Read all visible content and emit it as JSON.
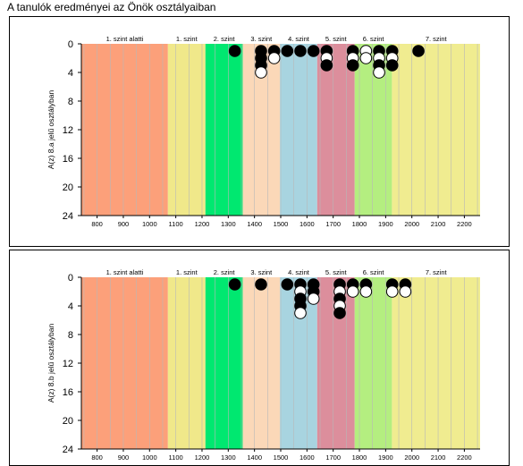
{
  "page_title": "A tanulók eredményei az Önök osztályaiban",
  "chart_data": [
    {
      "type": "scatter",
      "title": "",
      "ylabel": "A(z) 8.a jelű osztályban",
      "xlabel": "",
      "xlim": [
        740,
        2260
      ],
      "ylim": [
        0,
        24
      ],
      "y_inverted": true,
      "x_ticks": [
        800,
        900,
        1000,
        1100,
        1200,
        1300,
        1400,
        1500,
        1600,
        1700,
        1800,
        1900,
        2000,
        2100,
        2200
      ],
      "y_ticks": [
        0,
        4,
        8,
        12,
        16,
        20,
        24
      ],
      "grid": true,
      "bands": [
        {
          "label": "1. szint alatti",
          "from": 740,
          "to": 1070,
          "color": "#fca07a"
        },
        {
          "label": "1. szint",
          "from": 1070,
          "to": 1213,
          "color": "#f0e88a"
        },
        {
          "label": "2. szint",
          "from": 1213,
          "to": 1355,
          "color": "#00e870"
        },
        {
          "label": "3. szint",
          "from": 1355,
          "to": 1497,
          "color": "#fbd8b8"
        },
        {
          "label": "4. szint",
          "from": 1497,
          "to": 1639,
          "color": "#a8d4e0"
        },
        {
          "label": "5. szint",
          "from": 1639,
          "to": 1782,
          "color": "#dc8e9c"
        },
        {
          "label": "6. szint",
          "from": 1782,
          "to": 1924,
          "color": "#b4ee80"
        },
        {
          "label": "7. szint",
          "from": 1924,
          "to": 2260,
          "color": "#f0ec90"
        }
      ],
      "points": [
        {
          "x": 1325,
          "y": 1,
          "fill": "black"
        },
        {
          "x": 1425,
          "y": 1,
          "fill": "black"
        },
        {
          "x": 1425,
          "y": 2,
          "fill": "black"
        },
        {
          "x": 1425,
          "y": 3,
          "fill": "black"
        },
        {
          "x": 1425,
          "y": 4,
          "fill": "white"
        },
        {
          "x": 1475,
          "y": 1,
          "fill": "black"
        },
        {
          "x": 1475,
          "y": 2,
          "fill": "white"
        },
        {
          "x": 1525,
          "y": 1,
          "fill": "black"
        },
        {
          "x": 1575,
          "y": 1,
          "fill": "black"
        },
        {
          "x": 1625,
          "y": 1,
          "fill": "black"
        },
        {
          "x": 1675,
          "y": 1,
          "fill": "black"
        },
        {
          "x": 1675,
          "y": 2,
          "fill": "white"
        },
        {
          "x": 1675,
          "y": 3,
          "fill": "black"
        },
        {
          "x": 1775,
          "y": 1,
          "fill": "black"
        },
        {
          "x": 1775,
          "y": 2,
          "fill": "white"
        },
        {
          "x": 1775,
          "y": 3,
          "fill": "black"
        },
        {
          "x": 1825,
          "y": 1,
          "fill": "white"
        },
        {
          "x": 1825,
          "y": 2,
          "fill": "white"
        },
        {
          "x": 1875,
          "y": 1,
          "fill": "black"
        },
        {
          "x": 1875,
          "y": 2,
          "fill": "white"
        },
        {
          "x": 1875,
          "y": 3,
          "fill": "black"
        },
        {
          "x": 1875,
          "y": 4,
          "fill": "white"
        },
        {
          "x": 1925,
          "y": 1,
          "fill": "black"
        },
        {
          "x": 1925,
          "y": 2,
          "fill": "white"
        },
        {
          "x": 1925,
          "y": 3,
          "fill": "black"
        },
        {
          "x": 2025,
          "y": 1,
          "fill": "black"
        }
      ]
    },
    {
      "type": "scatter",
      "title": "",
      "ylabel": "A(z) 8.b jelű osztályban",
      "xlabel": "",
      "xlim": [
        740,
        2260
      ],
      "ylim": [
        0,
        24
      ],
      "y_inverted": true,
      "x_ticks": [
        800,
        900,
        1000,
        1100,
        1200,
        1300,
        1400,
        1500,
        1600,
        1700,
        1800,
        1900,
        2000,
        2100,
        2200
      ],
      "y_ticks": [
        0,
        4,
        8,
        12,
        16,
        20,
        24
      ],
      "grid": true,
      "bands": [
        {
          "label": "1. szint alatti",
          "from": 740,
          "to": 1070,
          "color": "#fca07a"
        },
        {
          "label": "1. szint",
          "from": 1070,
          "to": 1213,
          "color": "#f0e88a"
        },
        {
          "label": "2. szint",
          "from": 1213,
          "to": 1355,
          "color": "#00e870"
        },
        {
          "label": "3. szint",
          "from": 1355,
          "to": 1497,
          "color": "#fbd8b8"
        },
        {
          "label": "4. szint",
          "from": 1497,
          "to": 1639,
          "color": "#a8d4e0"
        },
        {
          "label": "5. szint",
          "from": 1639,
          "to": 1782,
          "color": "#dc8e9c"
        },
        {
          "label": "6. szint",
          "from": 1782,
          "to": 1924,
          "color": "#b4ee80"
        },
        {
          "label": "7. szint",
          "from": 1924,
          "to": 2260,
          "color": "#f0ec90"
        }
      ],
      "points": [
        {
          "x": 1325,
          "y": 1,
          "fill": "black"
        },
        {
          "x": 1425,
          "y": 1,
          "fill": "black"
        },
        {
          "x": 1525,
          "y": 1,
          "fill": "black"
        },
        {
          "x": 1575,
          "y": 1,
          "fill": "black"
        },
        {
          "x": 1575,
          "y": 2,
          "fill": "white"
        },
        {
          "x": 1575,
          "y": 3,
          "fill": "black"
        },
        {
          "x": 1575,
          "y": 4,
          "fill": "black"
        },
        {
          "x": 1575,
          "y": 5,
          "fill": "white"
        },
        {
          "x": 1625,
          "y": 1,
          "fill": "black"
        },
        {
          "x": 1625,
          "y": 2,
          "fill": "black"
        },
        {
          "x": 1625,
          "y": 3,
          "fill": "white"
        },
        {
          "x": 1725,
          "y": 1,
          "fill": "black"
        },
        {
          "x": 1725,
          "y": 2,
          "fill": "white"
        },
        {
          "x": 1725,
          "y": 3,
          "fill": "black"
        },
        {
          "x": 1725,
          "y": 4,
          "fill": "white"
        },
        {
          "x": 1725,
          "y": 5,
          "fill": "black"
        },
        {
          "x": 1775,
          "y": 1,
          "fill": "black"
        },
        {
          "x": 1775,
          "y": 2,
          "fill": "white"
        },
        {
          "x": 1825,
          "y": 1,
          "fill": "black"
        },
        {
          "x": 1825,
          "y": 2,
          "fill": "white"
        },
        {
          "x": 1925,
          "y": 1,
          "fill": "black"
        },
        {
          "x": 1925,
          "y": 2,
          "fill": "white"
        },
        {
          "x": 1975,
          "y": 1,
          "fill": "black"
        },
        {
          "x": 1975,
          "y": 2,
          "fill": "white"
        }
      ]
    }
  ]
}
